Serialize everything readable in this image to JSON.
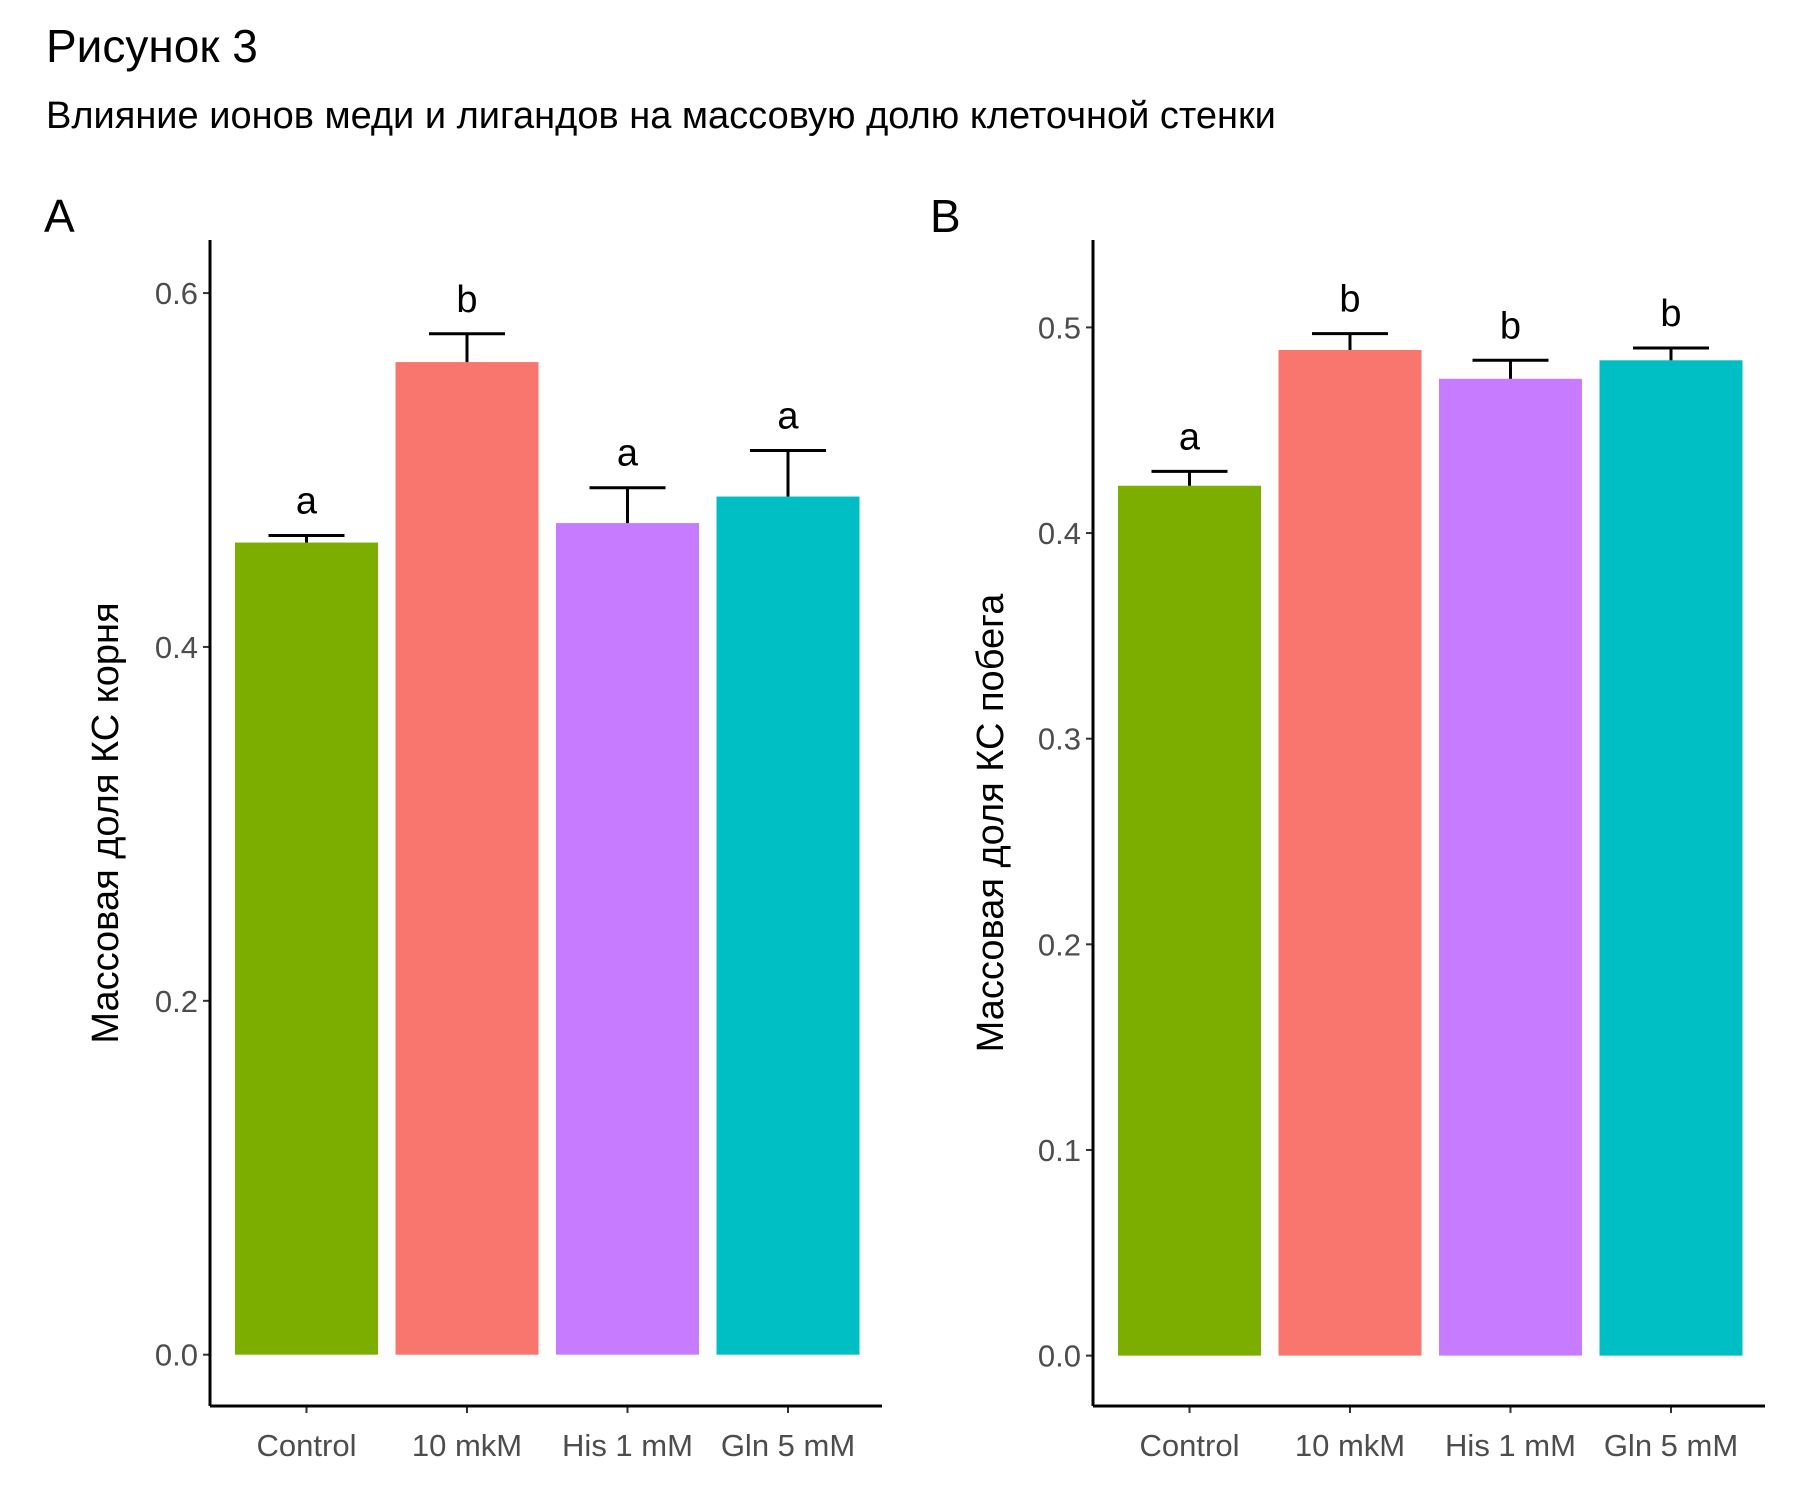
{
  "figure": {
    "title": "Рисунок 3",
    "subtitle": "Влияние ионов меди и лигандов на массовую долю клеточной стенки"
  },
  "chart_data": [
    {
      "type": "bar",
      "panel": "A",
      "categories": [
        "Control",
        "10 mkM",
        "His 1 mM",
        "Gln 5 mM"
      ],
      "values": [
        0.459,
        0.561,
        0.47,
        0.485
      ],
      "errors": [
        0.004,
        0.016,
        0.02,
        0.026
      ],
      "significance": [
        "a",
        "b",
        "a",
        "a"
      ],
      "colors": [
        "#7CAE00",
        "#F8766D",
        "#C77CFF",
        "#00BFC4"
      ],
      "xlabel": "",
      "ylabel": "Массовая доля КС корня",
      "yticks": [
        0.0,
        0.2,
        0.4,
        0.6
      ],
      "ylim": [
        -0.029,
        0.63
      ],
      "grid": false,
      "legend": "none"
    },
    {
      "type": "bar",
      "panel": "B",
      "categories": [
        "Control",
        "10 mkM",
        "His 1 mM",
        "Gln 5 mM"
      ],
      "values": [
        0.423,
        0.489,
        0.475,
        0.484
      ],
      "errors": [
        0.007,
        0.008,
        0.009,
        0.006
      ],
      "significance": [
        "a",
        "b",
        "b",
        "b"
      ],
      "colors": [
        "#7CAE00",
        "#F8766D",
        "#C77CFF",
        "#00BFC4"
      ],
      "xlabel": "",
      "ylabel": "Массовая доля КС побега",
      "yticks": [
        0.0,
        0.1,
        0.2,
        0.3,
        0.4,
        0.5
      ],
      "ylim": [
        -0.0245,
        0.5425
      ],
      "grid": false,
      "legend": "none"
    }
  ]
}
